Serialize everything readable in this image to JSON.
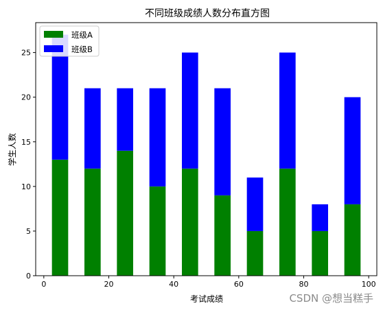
{
  "chart_data": {
    "type": "bar",
    "stacked": true,
    "title": "不同班级成绩人数分布直方图",
    "xlabel": "考试成绩",
    "ylabel": "学生人数",
    "x": [
      5,
      15,
      25,
      35,
      45,
      55,
      65,
      75,
      85,
      95
    ],
    "bar_width": 5,
    "series": [
      {
        "name": "班级A",
        "color": "#008000",
        "values": [
          13,
          12,
          14,
          10,
          12,
          9,
          5,
          12,
          5,
          8
        ]
      },
      {
        "name": "班级B",
        "color": "#0000ff",
        "values": [
          14,
          9,
          7,
          11,
          13,
          12,
          6,
          13,
          3,
          12
        ]
      }
    ],
    "xlim": [
      -2.5,
      102.5
    ],
    "ylim": [
      0,
      28.35
    ],
    "xticks": [
      "0",
      "20",
      "40",
      "60",
      "80",
      "100"
    ],
    "yticks": [
      "0",
      "5",
      "10",
      "15",
      "20",
      "25"
    ],
    "grid": false,
    "legend_position": "upper-left"
  },
  "watermark": "CSDN @想当糕手"
}
